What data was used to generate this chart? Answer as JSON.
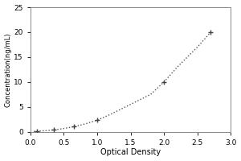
{
  "x_data": [
    0.05,
    0.1,
    0.15,
    0.2,
    0.3,
    0.4,
    0.5,
    0.65,
    0.8,
    1.0,
    1.2,
    1.5,
    1.8,
    2.0,
    2.2,
    2.5,
    2.7
  ],
  "y_data": [
    0.05,
    0.1,
    0.15,
    0.2,
    0.3,
    0.45,
    0.65,
    1.0,
    1.5,
    2.3,
    3.5,
    5.5,
    7.5,
    10.0,
    13.0,
    17.0,
    20.0
  ],
  "marker_x": [
    0.1,
    0.35,
    0.65,
    1.0,
    2.0,
    2.7
  ],
  "marker_y": [
    0.1,
    0.4,
    1.0,
    2.3,
    10.0,
    20.0
  ],
  "xlabel": "Optical Density",
  "ylabel": "Concentration(ng/mL)",
  "xlim": [
    0,
    3
  ],
  "ylim": [
    0,
    25
  ],
  "xticks": [
    0.0,
    0.5,
    1.0,
    1.5,
    2.0,
    2.5,
    3.0
  ],
  "yticks": [
    0,
    5,
    10,
    15,
    20,
    25
  ],
  "line_color": "#555555",
  "marker_color": "#444444",
  "ax_background": "#ffffff",
  "fig_background": "#ffffff",
  "spine_color": "#888888"
}
